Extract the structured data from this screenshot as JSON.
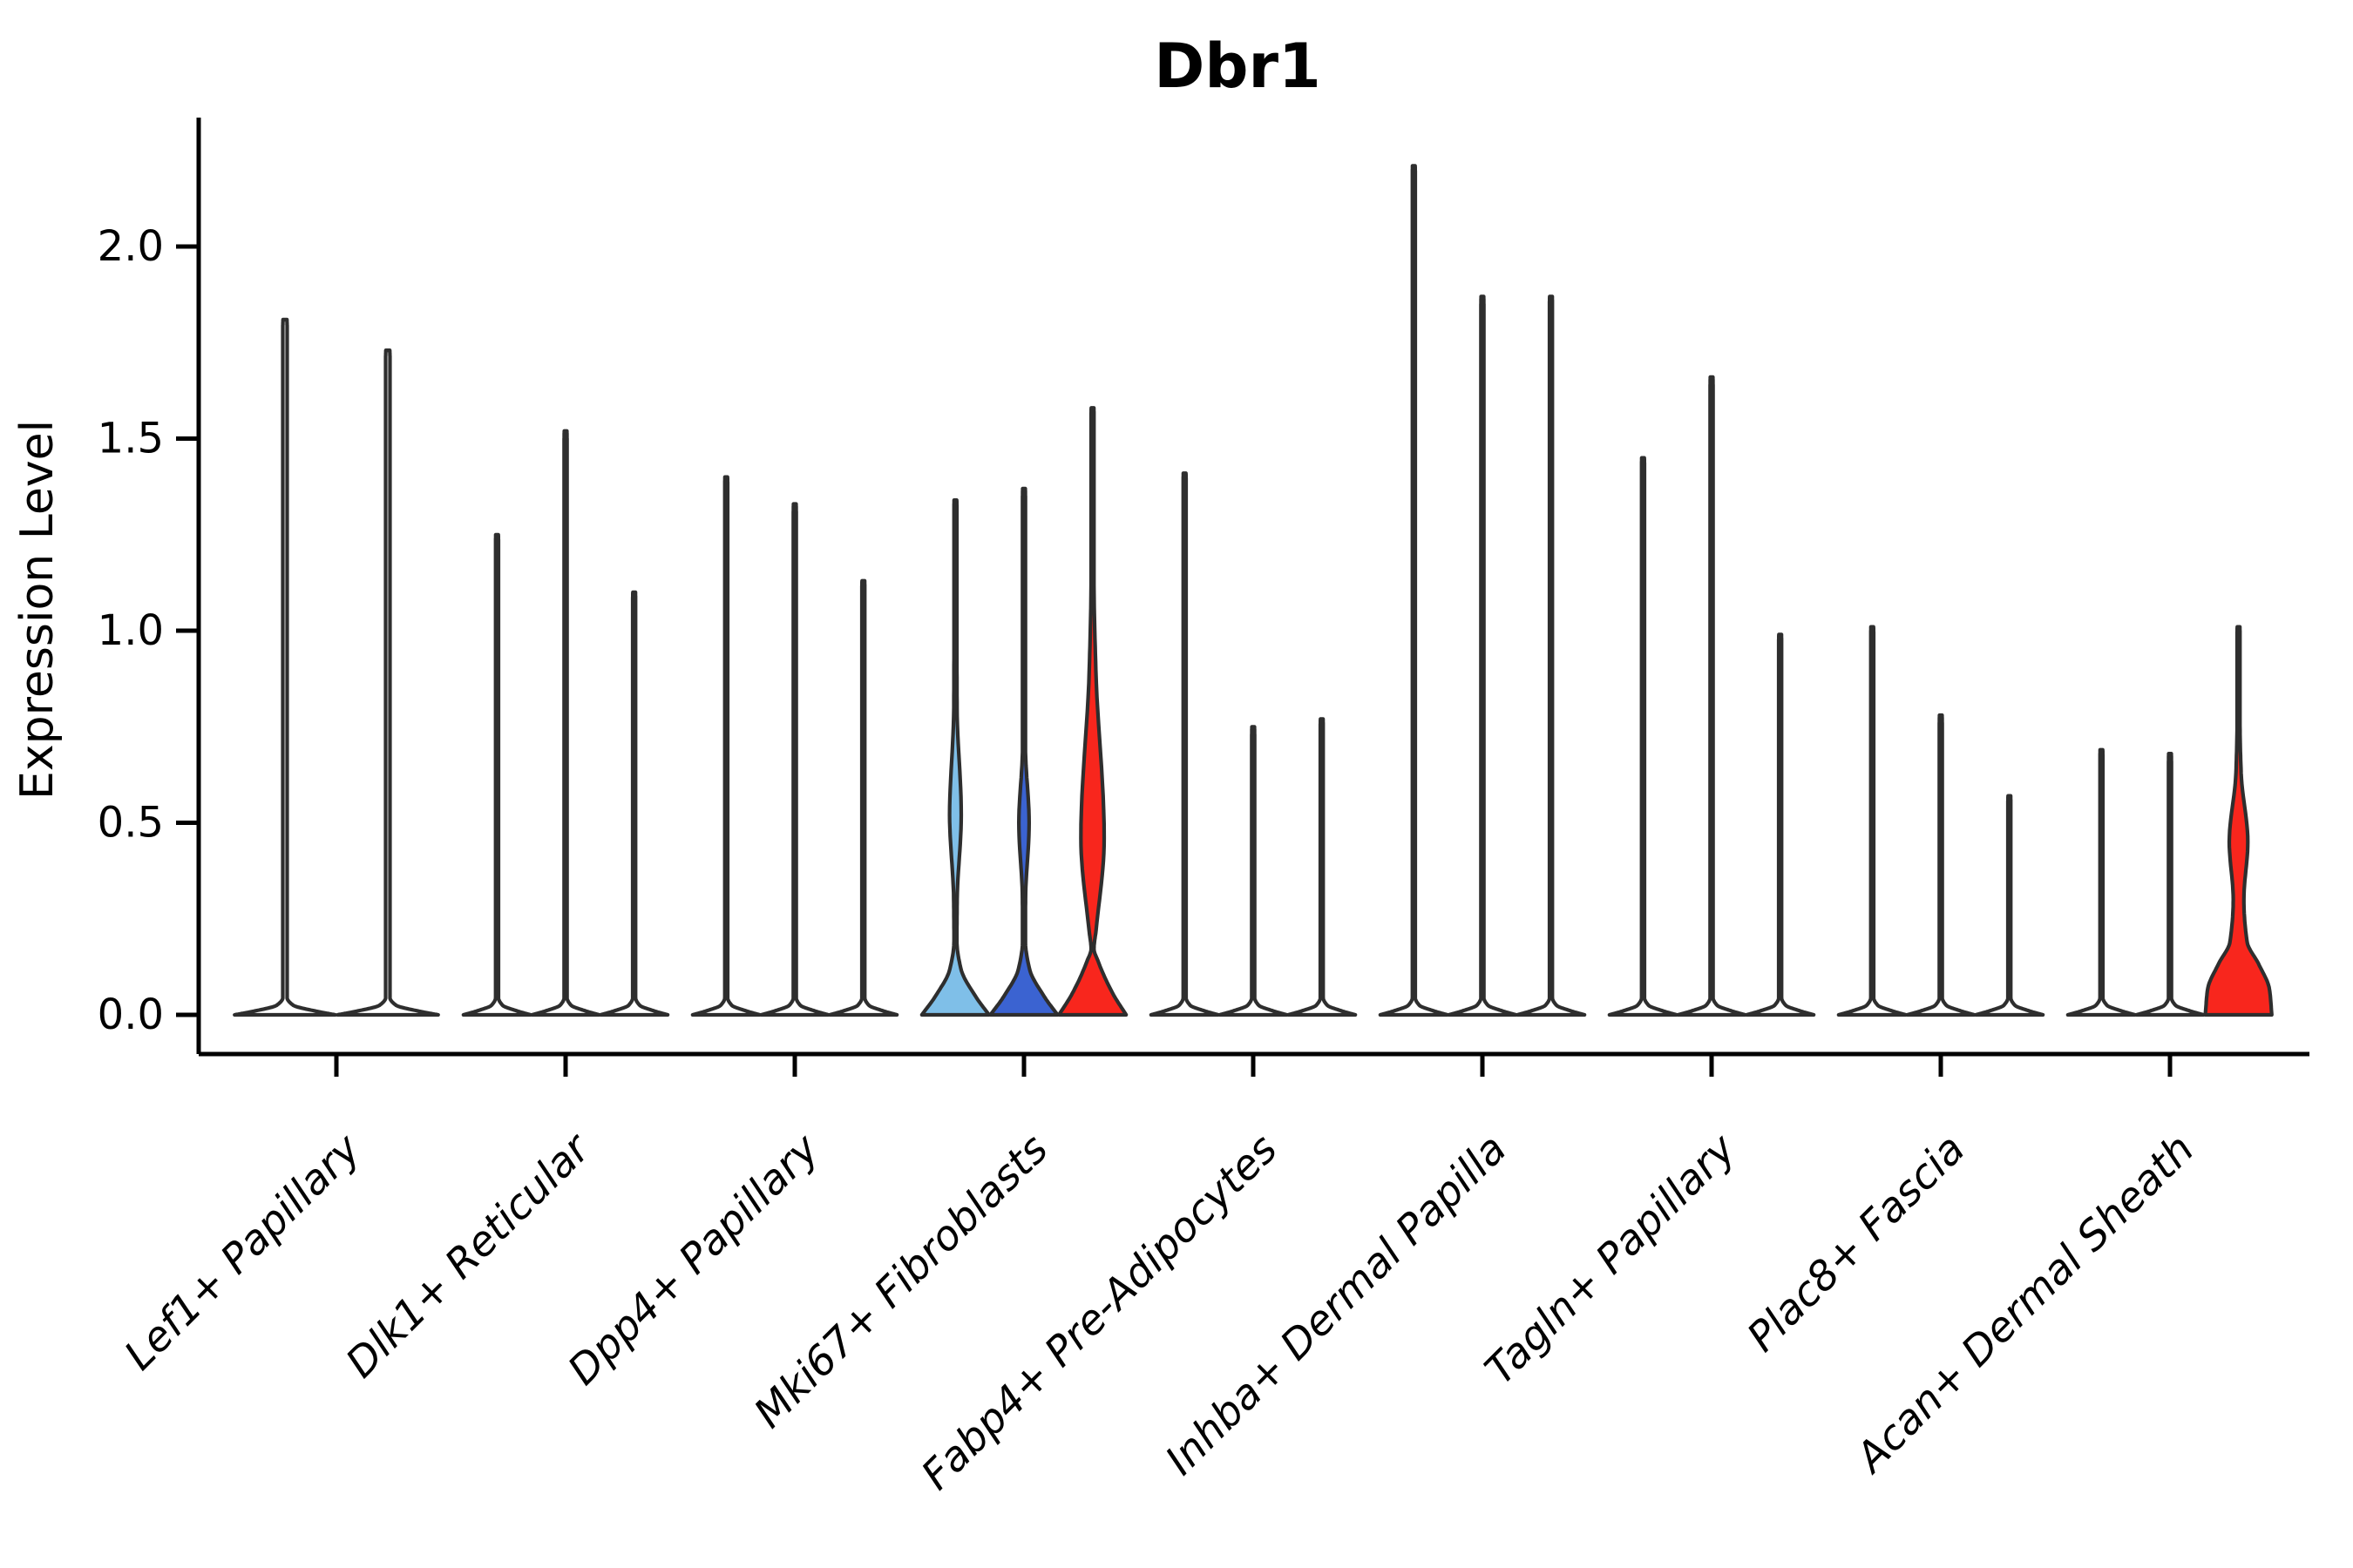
{
  "title": "Dbr1",
  "y_axis": {
    "label": "Expression Level",
    "ticks": [
      "0.0",
      "0.5",
      "1.0",
      "1.5",
      "2.0"
    ],
    "tick_values": [
      0.0,
      0.5,
      1.0,
      1.5,
      2.0
    ]
  },
  "chart_data": {
    "type": "violin",
    "title": "Dbr1",
    "xlabel": "",
    "ylabel": "Expression Level",
    "ylim": [
      -0.1,
      2.34
    ],
    "grid": false,
    "legend": "none",
    "palette": {
      "outline": "#2e2e2e",
      "white": "#ffffff",
      "light_blue": "#7fbfe8",
      "blue": "#3b63d1",
      "red": "#f8261d"
    },
    "categories": [
      "Lef1+ Papillary",
      "Dlk1+ Reticular",
      "Dpp4+ Papillary",
      "Mki67+ Fibroblasts",
      "Fabp4+ Pre-Adipocytes",
      "Inhba+ Dermal Papilla",
      "Tagln+ Papillary",
      "Plac8+ Fascia",
      "Acan+ Dermal Sheath"
    ],
    "groups": [
      {
        "category": "Lef1+ Papillary",
        "violins": [
          {
            "max": 1.81,
            "fill": "white",
            "base": {
              "h": 0.025,
              "r": 0.98
            }
          },
          {
            "max": 1.73,
            "fill": "white",
            "base": {
              "h": 0.025,
              "r": 0.98
            }
          }
        ]
      },
      {
        "category": "Dlk1+ Reticular",
        "violins": [
          {
            "max": 1.25,
            "fill": "white",
            "base": {
              "h": 0.025,
              "r": 0.98
            }
          },
          {
            "max": 1.52,
            "fill": "white",
            "base": {
              "h": 0.025,
              "r": 0.98
            }
          },
          {
            "max": 1.1,
            "fill": "white",
            "base": {
              "h": 0.025,
              "r": 0.98
            }
          }
        ]
      },
      {
        "category": "Dpp4+ Papillary",
        "violins": [
          {
            "max": 1.4,
            "fill": "white",
            "base": {
              "h": 0.025,
              "r": 0.98
            }
          },
          {
            "max": 1.33,
            "fill": "white",
            "base": {
              "h": 0.025,
              "r": 0.98
            }
          },
          {
            "max": 1.13,
            "fill": "white",
            "base": {
              "h": 0.025,
              "r": 0.98
            }
          }
        ]
      },
      {
        "category": "Mki67+ Fibroblasts",
        "violins": [
          {
            "max": 1.34,
            "fill": "light_blue",
            "base": {
              "h": 0.12,
              "r": 0.98
            },
            "bulge": {
              "lo": 0.3,
              "mid": 0.52,
              "hi": 0.8,
              "r": 0.17
            }
          },
          {
            "max": 1.37,
            "fill": "blue",
            "base": {
              "h": 0.12,
              "r": 0.98
            },
            "bulge": {
              "lo": 0.3,
              "mid": 0.5,
              "hi": 0.7,
              "r": 0.15
            }
          },
          {
            "max": 1.58,
            "fill": "red",
            "base": {
              "h": 0.14,
              "r": 0.98
            },
            "bulge": {
              "lo": 0.22,
              "mid": 0.46,
              "hi": 0.9,
              "r": 0.34
            }
          }
        ]
      },
      {
        "category": "Fabp4+ Pre-Adipocytes",
        "violins": [
          {
            "max": 1.41,
            "fill": "white",
            "base": {
              "h": 0.025,
              "r": 0.98
            }
          },
          {
            "max": 0.75,
            "fill": "white",
            "base": {
              "h": 0.025,
              "r": 0.98
            }
          },
          {
            "max": 0.77,
            "fill": "white",
            "base": {
              "h": 0.025,
              "r": 0.98
            }
          }
        ]
      },
      {
        "category": "Inhba+ Dermal Papilla",
        "violins": [
          {
            "max": 2.21,
            "fill": "white",
            "base": {
              "h": 0.025,
              "r": 0.98
            }
          },
          {
            "max": 1.87,
            "fill": "white",
            "base": {
              "h": 0.025,
              "r": 0.98
            }
          },
          {
            "max": 1.87,
            "fill": "white",
            "base": {
              "h": 0.025,
              "r": 0.98
            }
          }
        ]
      },
      {
        "category": "Tagln+ Papillary",
        "violins": [
          {
            "max": 1.45,
            "fill": "white",
            "base": {
              "h": 0.025,
              "r": 0.98
            }
          },
          {
            "max": 1.66,
            "fill": "white",
            "base": {
              "h": 0.025,
              "r": 0.98
            }
          },
          {
            "max": 0.99,
            "fill": "white",
            "base": {
              "h": 0.025,
              "r": 0.98
            }
          }
        ]
      },
      {
        "category": "Plac8+ Fascia",
        "violins": [
          {
            "max": 1.01,
            "fill": "white",
            "base": {
              "h": 0.025,
              "r": 0.98
            }
          },
          {
            "max": 0.78,
            "fill": "white",
            "base": {
              "h": 0.025,
              "r": 0.98
            }
          },
          {
            "max": 0.57,
            "fill": "white",
            "base": {
              "h": 0.025,
              "r": 0.98
            }
          }
        ]
      },
      {
        "category": "Acan+ Dermal Sheath",
        "violins": [
          {
            "max": 0.69,
            "fill": "white",
            "base": {
              "h": 0.025,
              "r": 0.98
            }
          },
          {
            "max": 0.68,
            "fill": "white",
            "base": {
              "h": 0.025,
              "r": 0.98
            }
          },
          {
            "max": 1.01,
            "fill": "red",
            "base": {
              "h": 0.19,
              "r": 0.97,
              "dome": true,
              "neck": 0.155
            },
            "bulge": {
              "lo": 0.3,
              "mid": 0.45,
              "hi": 0.63,
              "r": 0.27
            }
          }
        ]
      }
    ]
  }
}
